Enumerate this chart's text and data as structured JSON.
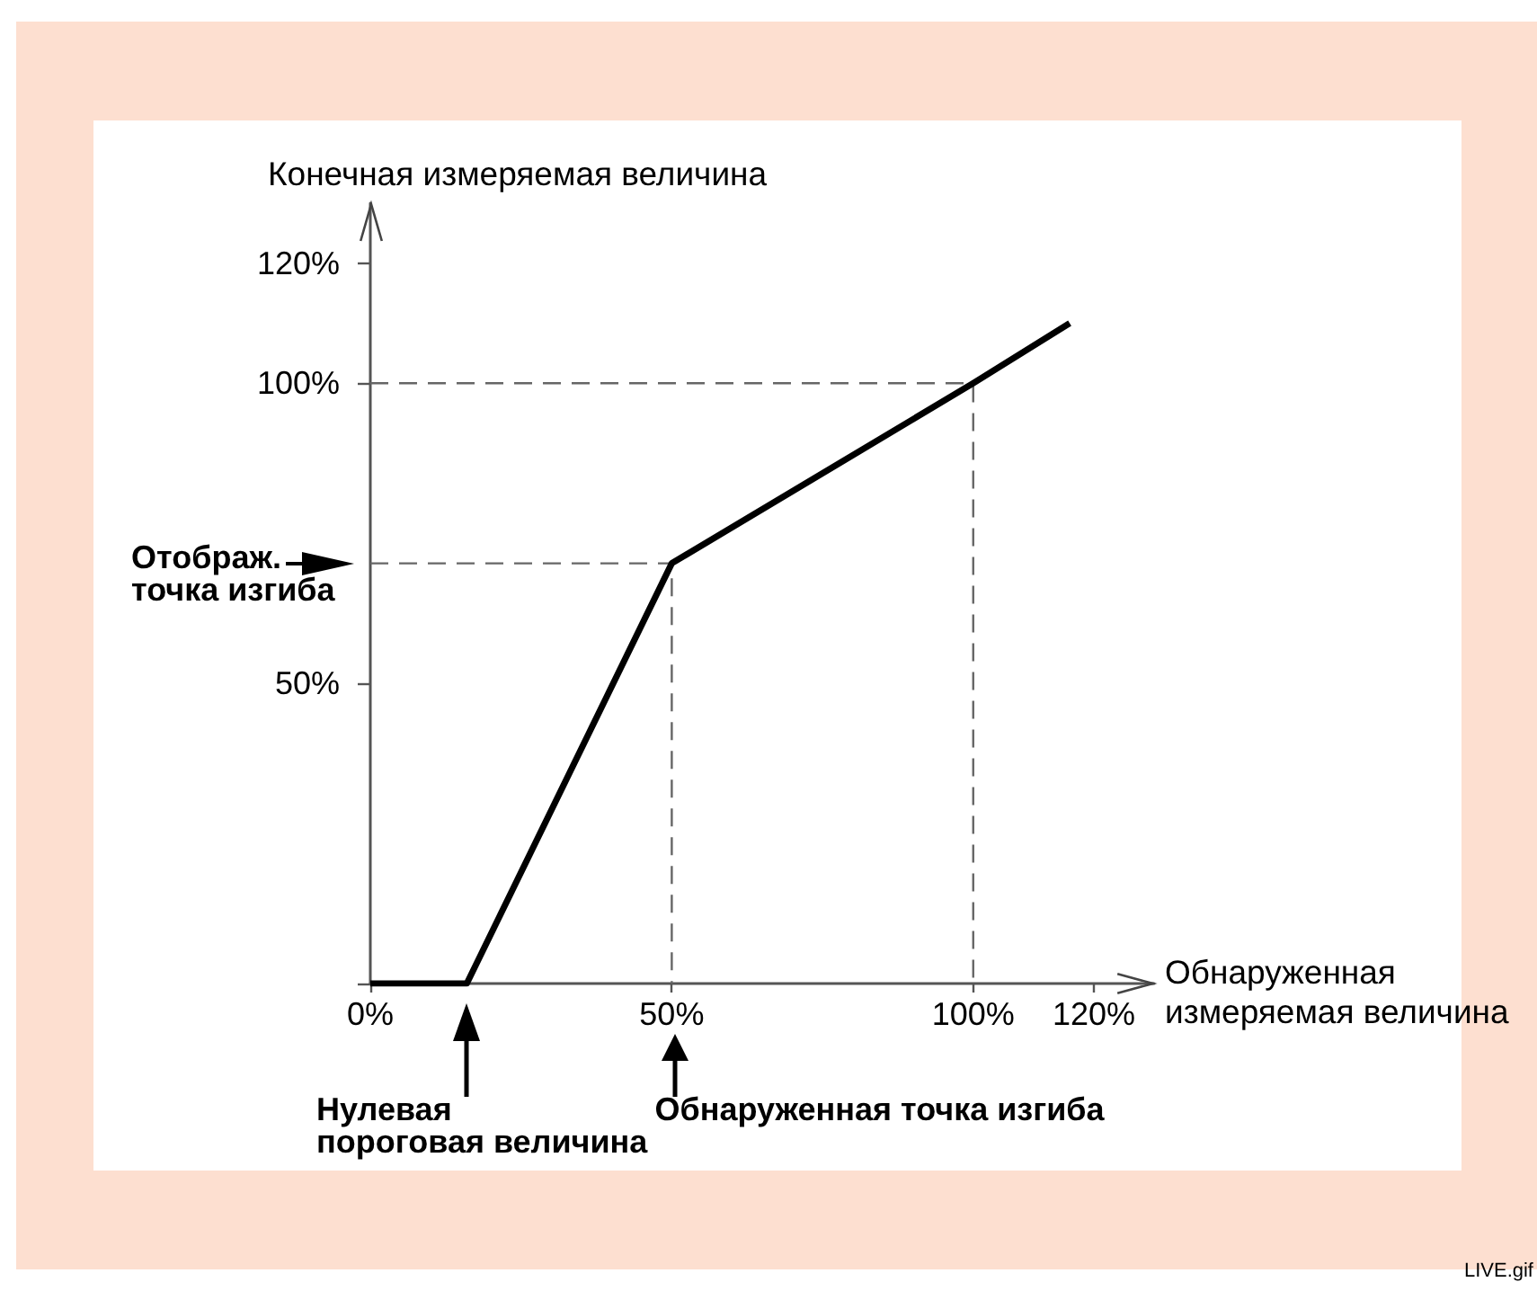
{
  "chart_data": {
    "type": "line",
    "xlabel": "Обнаруженная\nизмеряемая величина",
    "ylabel": "Конечная измеряемая величина",
    "xlim": [
      0,
      130
    ],
    "ylim": [
      0,
      130
    ],
    "xticks": [
      {
        "value": 0,
        "label": "0%"
      },
      {
        "value": 50,
        "label": "50%"
      },
      {
        "value": 100,
        "label": "100%"
      },
      {
        "value": 120,
        "label": "120%"
      }
    ],
    "yticks": [
      {
        "value": 0,
        "label": null
      },
      {
        "value": 50,
        "label": "50%"
      },
      {
        "value": 100,
        "label": "100%"
      },
      {
        "value": 120,
        "label": "120%"
      }
    ],
    "marker": "none",
    "line_style": "solid",
    "series": [
      {
        "color": "#000000",
        "x": [
          0,
          16,
          50,
          100,
          116
        ],
        "values": [
          0,
          0,
          70,
          100,
          110
        ]
      },
      {
        "color": "#666666",
        "line_style": "dashed",
        "x": [
          0,
          50,
          50
        ],
        "values": [
          70,
          70,
          0
        ]
      },
      {
        "color": "#666666",
        "line_style": "dashed",
        "x": [
          0,
          100,
          100
        ],
        "values": [
          100,
          100,
          0
        ]
      }
    ],
    "annotations": [
      {
        "text": "Отображ.\nточка изгиба",
        "x": 0,
        "y": 70
      },
      "Нулевая\nпороговая величина",
      "Обнаруженная точка изгиба",
      "LIVE.gif"
    ]
  }
}
